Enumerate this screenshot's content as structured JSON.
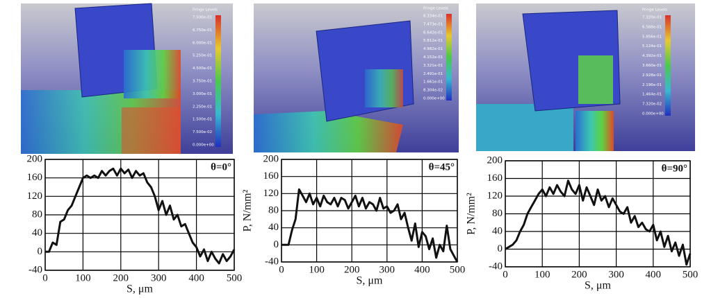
{
  "chart_data": [
    {
      "type": "line",
      "annotation": "θ=0°",
      "x_label": "S, μm",
      "color": "#111111",
      "x": [
        0,
        10,
        20,
        30,
        40,
        50,
        60,
        70,
        80,
        90,
        100,
        110,
        120,
        130,
        140,
        150,
        160,
        170,
        180,
        190,
        200,
        210,
        220,
        230,
        240,
        250,
        260,
        270,
        280,
        290,
        300,
        310,
        320,
        330,
        340,
        350,
        360,
        370,
        380,
        390,
        400,
        410,
        420,
        430,
        440,
        450,
        460,
        470,
        480,
        490,
        500
      ],
      "values": [
        0,
        0,
        20,
        15,
        65,
        70,
        90,
        100,
        120,
        140,
        160,
        165,
        160,
        165,
        160,
        175,
        165,
        175,
        180,
        165,
        180,
        170,
        178,
        160,
        175,
        165,
        170,
        150,
        140,
        120,
        90,
        110,
        80,
        100,
        70,
        80,
        55,
        60,
        40,
        20,
        10,
        -10,
        5,
        -20,
        0,
        -15,
        -25,
        -5,
        -20,
        -10,
        5
      ],
      "xlim": [
        0,
        500
      ],
      "xticks": [
        0,
        100,
        200,
        300,
        400,
        500
      ],
      "ylim": [
        -40,
        200
      ],
      "yticks": [
        -40,
        0,
        40,
        80,
        120,
        160,
        200
      ],
      "grid": true
    },
    {
      "type": "line",
      "annotation": "θ=45°",
      "x_label": "S, μm",
      "y_label": "P, N/mm²",
      "color": "#111111",
      "x": [
        0,
        10,
        20,
        30,
        40,
        50,
        60,
        70,
        80,
        90,
        100,
        110,
        120,
        130,
        140,
        150,
        160,
        170,
        180,
        190,
        200,
        210,
        220,
        230,
        240,
        250,
        260,
        270,
        280,
        290,
        300,
        310,
        320,
        330,
        340,
        350,
        360,
        370,
        380,
        390,
        400,
        410,
        420,
        430,
        440,
        450,
        460,
        470,
        480,
        490,
        500
      ],
      "values": [
        0,
        0,
        0,
        35,
        60,
        130,
        115,
        100,
        120,
        95,
        110,
        90,
        115,
        100,
        95,
        110,
        90,
        110,
        105,
        85,
        100,
        115,
        90,
        110,
        85,
        100,
        95,
        80,
        110,
        85,
        90,
        75,
        80,
        95,
        60,
        75,
        40,
        10,
        50,
        -5,
        30,
        20,
        -10,
        15,
        -30,
        0,
        -15,
        45,
        -10,
        -25,
        -40
      ],
      "xlim": [
        0,
        500
      ],
      "xticks": [
        0,
        100,
        200,
        300,
        400,
        500
      ],
      "ylim": [
        -40,
        200
      ],
      "yticks": [
        -40,
        0,
        40,
        80,
        120,
        160,
        200
      ],
      "grid": true
    },
    {
      "type": "line",
      "annotation": "θ=90°",
      "x_label": "S, μm",
      "y_label": "P, N/mm²",
      "color": "#111111",
      "x": [
        0,
        10,
        20,
        30,
        40,
        50,
        60,
        70,
        80,
        90,
        100,
        110,
        120,
        130,
        140,
        150,
        160,
        170,
        180,
        190,
        200,
        210,
        220,
        230,
        240,
        250,
        260,
        270,
        280,
        290,
        300,
        310,
        320,
        330,
        340,
        350,
        360,
        370,
        380,
        390,
        400,
        410,
        420,
        430,
        440,
        450,
        460,
        470,
        480,
        490,
        500
      ],
      "values": [
        0,
        5,
        10,
        20,
        40,
        55,
        80,
        95,
        110,
        125,
        135,
        120,
        140,
        125,
        145,
        130,
        120,
        155,
        135,
        125,
        145,
        110,
        140,
        120,
        100,
        135,
        110,
        120,
        95,
        115,
        100,
        85,
        80,
        95,
        60,
        75,
        50,
        60,
        45,
        40,
        55,
        20,
        40,
        5,
        30,
        -5,
        15,
        -15,
        10,
        -35,
        -10
      ],
      "xlim": [
        0,
        500
      ],
      "xticks": [
        0,
        100,
        200,
        300,
        400,
        500
      ],
      "ylim": [
        -40,
        200
      ],
      "yticks": [
        -40,
        0,
        40,
        80,
        120,
        160,
        200
      ],
      "grid": true
    }
  ],
  "simulations": [
    {
      "legend_title": "Fringe Levels",
      "levels": [
        "7.500e-01",
        "6.750e-01",
        "6.000e-01",
        "5.250e-01",
        "4.500e-01",
        "3.750e-01",
        "3.000e-01",
        "2.250e-01",
        "1.500e-01",
        "7.500e-02",
        "0.000e+00"
      ]
    },
    {
      "legend_title": "Fringe Levels",
      "levels": [
        "8.334e-01",
        "7.473e-01",
        "6.642e-01",
        "5.812e-01",
        "4.982e-01",
        "4.152e-01",
        "3.321e-01",
        "2.491e-01",
        "1.661e-01",
        "8.304e-02",
        "0.000e+00"
      ]
    },
    {
      "legend_title": "Fringe Levels",
      "levels": [
        "7.320e-01",
        "6.588e-01",
        "5.856e-01",
        "5.124e-01",
        "4.392e-01",
        "3.660e-01",
        "2.928e-01",
        "2.196e-01",
        "1.464e-01",
        "7.320e-02",
        "0.000e+00"
      ]
    }
  ]
}
